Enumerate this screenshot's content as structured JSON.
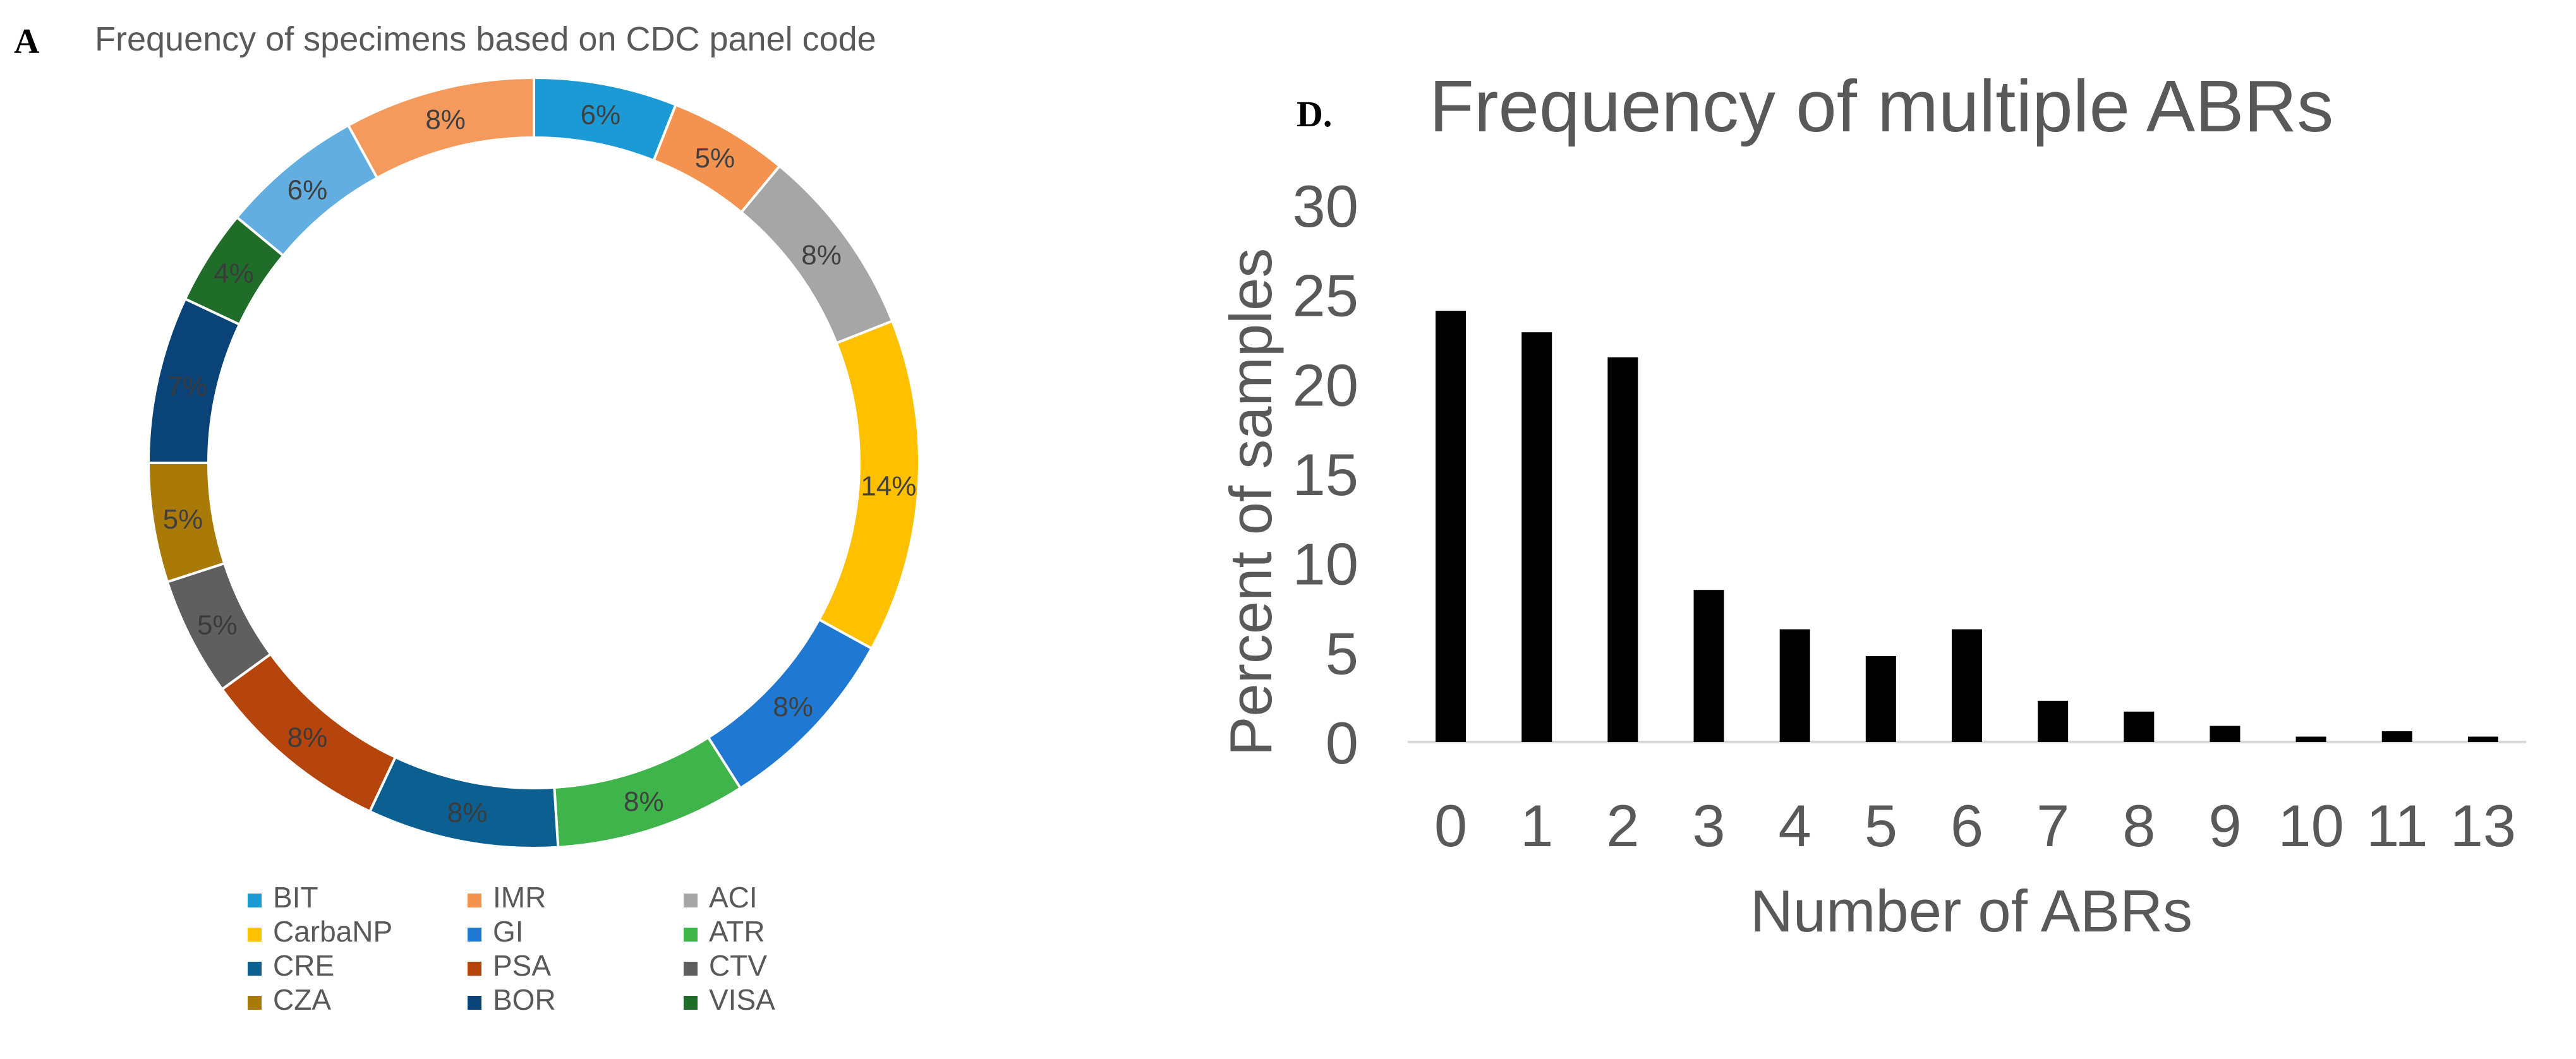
{
  "colors": {
    "BIT": "#1c9ad6",
    "IMR": "#f4934f",
    "ACI": "#a6a6a6",
    "CarbaNP": "#ffc000",
    "GI": "#1f78d1",
    "ATR": "#3fb44a",
    "CRE": "#0b5f91",
    "PSA": "#b5450c",
    "CTV": "#5f5f5f",
    "CZA": "#a97a07",
    "BOR": "#0a4378",
    "VISA": "#1f6d28",
    "bar": "#000000",
    "text": "#595959"
  },
  "chart_data": [
    {
      "panel": "A",
      "type": "pie",
      "donut": true,
      "title": "Frequency of specimens based on CDC panel code",
      "slices": [
        {
          "label": "BIT",
          "value": 6,
          "text": "6%"
        },
        {
          "label": "IMR",
          "value": 5,
          "text": "5%"
        },
        {
          "label": "ACI",
          "value": 8,
          "text": "8%"
        },
        {
          "label": "CarbaNP",
          "value": 14,
          "text": "14%"
        },
        {
          "label": "GI",
          "value": 8,
          "text": "8%"
        },
        {
          "label": "ATR",
          "value": 8,
          "text": "8%"
        },
        {
          "label": "CRE",
          "value": 8,
          "text": "8%"
        },
        {
          "label": "PSA",
          "value": 8,
          "text": "8%"
        },
        {
          "label": "CTV",
          "value": 5,
          "text": "5%"
        },
        {
          "label": "CZA",
          "value": 5,
          "text": "5%"
        },
        {
          "label": "BOR",
          "value": 7,
          "text": "7%"
        },
        {
          "label": "VISA",
          "value": 4,
          "text": "4%"
        },
        {
          "label": "",
          "value": 6,
          "text": "6%"
        },
        {
          "label": "",
          "value": 8,
          "text": "8%"
        }
      ],
      "legend": [
        "BIT",
        "IMR",
        "ACI",
        "CarbaNP",
        "GI",
        "ATR",
        "CRE",
        "PSA",
        "CTV",
        "CZA",
        "BOR",
        "VISA"
      ],
      "legend_position": "bottom"
    },
    {
      "panel": "D.",
      "type": "bar",
      "title": "Frequency of multiple ABRs",
      "xlabel": "Number of ABRs",
      "ylabel": "Percent of samples",
      "categories": [
        "0",
        "1",
        "2",
        "3",
        "4",
        "5",
        "6",
        "7",
        "8",
        "9",
        "10",
        "11",
        "13"
      ],
      "values": [
        24.1,
        22.9,
        21.5,
        8.5,
        6.3,
        4.8,
        6.3,
        2.3,
        1.7,
        0.9,
        0.3,
        0.6,
        0.3
      ],
      "ylim": [
        0,
        30
      ],
      "yticks": [
        "0",
        "5",
        "10",
        "15",
        "20",
        "25",
        "30"
      ],
      "grid": false
    }
  ]
}
